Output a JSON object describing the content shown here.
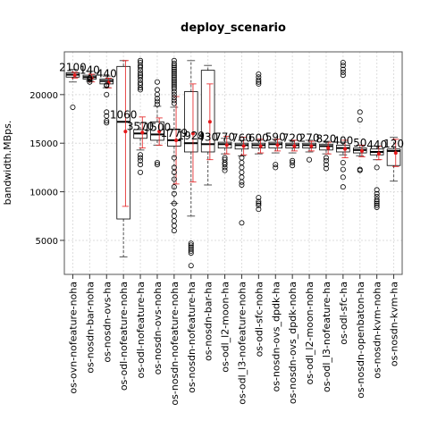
{
  "chart_data": {
    "type": "boxplot",
    "title": "deploy_scenario",
    "xlabel": "",
    "ylabel": "bandwidth.MBps.",
    "ylim": [
      1500,
      24400
    ],
    "yticks": [
      5000,
      10000,
      15000,
      20000
    ],
    "grid": true,
    "colors": {
      "box": "#000000",
      "whisker": "#555555",
      "mean": "#e41a1c",
      "grid": "#dddddd"
    },
    "categories": [
      {
        "name": "os-ovn-nofeature-noha",
        "n_label": "2100",
        "lower_whisker": 21300,
        "q1": 21800,
        "median": 22050,
        "q3": 22250,
        "upper_whisker": 22600,
        "mean": 22000,
        "mean_band": [
          21700,
          22300
        ],
        "outliers": [
          18700
        ]
      },
      {
        "name": "os-nosdn-bar-noha",
        "n_label": "140",
        "lower_whisker": 21400,
        "q1": 21600,
        "median": 21800,
        "q3": 22000,
        "upper_whisker": 22400,
        "mean": 21700,
        "mean_band": [
          21300,
          22100
        ],
        "outliers": [
          21500,
          21300,
          21600,
          21700
        ]
      },
      {
        "name": "os-nosdn-ovs-ha",
        "n_label": "440",
        "lower_whisker": 20700,
        "q1": 21100,
        "median": 21400,
        "q3": 21600,
        "upper_whisker": 21900,
        "mean": 21200,
        "mean_band": [
          20700,
          21700
        ],
        "outliers": [
          20000,
          18200,
          17800,
          17300,
          17100,
          21000,
          20900
        ]
      },
      {
        "name": "os-odl-nofeature-noha",
        "n_label": "1060",
        "lower_whisker": 3300,
        "q1": 7200,
        "median": 17200,
        "q3": 22900,
        "upper_whisker": 23500,
        "mean": 16200,
        "mean_band": [
          8500,
          23500
        ],
        "outliers": []
      },
      {
        "name": "os-odl-nofeature-ha",
        "n_label": "3570",
        "lower_whisker": 14300,
        "q1": 15500,
        "median": 16000,
        "q3": 16400,
        "upper_whisker": 17100,
        "mean": 16100,
        "mean_band": [
          14500,
          17700
        ],
        "outliers": [
          23500,
          23300,
          23000,
          22800,
          22500,
          22200,
          22000,
          21800,
          21500,
          21200,
          21000,
          20700,
          20500,
          13800,
          13500,
          13200,
          12800,
          12000
        ]
      },
      {
        "name": "os-nosdn-ovs-noha",
        "n_label": "1500",
        "lower_whisker": 14800,
        "q1": 15300,
        "median": 15900,
        "q3": 17200,
        "upper_whisker": 18800,
        "mean": 16200,
        "mean_band": [
          14800,
          17600
        ],
        "outliers": [
          21300,
          20500,
          20000,
          19600,
          19300,
          19000,
          13000,
          12800
        ]
      },
      {
        "name": "os-nosdn-nofeature-noha",
        "n_label": "1779",
        "lower_whisker": 8800,
        "q1": 14700,
        "median": 15300,
        "q3": 16400,
        "upper_whisker": 18700,
        "mean": 15300,
        "mean_band": [
          10800,
          19800
        ],
        "outliers": [
          23500,
          23200,
          23000,
          22800,
          22600,
          22400,
          22200,
          22000,
          21800,
          21600,
          21400,
          21200,
          21000,
          20800,
          20600,
          20300,
          20000,
          19700,
          19400,
          19100,
          13500,
          12500,
          12000,
          11300,
          10500,
          9800,
          8800,
          8000,
          7500,
          7000,
          6500,
          6000
        ]
      },
      {
        "name": "os-nosdn-nofeature-ha",
        "n_label": "1929",
        "lower_whisker": 7500,
        "q1": 14100,
        "median": 15000,
        "q3": 20300,
        "upper_whisker": 23500,
        "mean": 16000,
        "mean_band": [
          11000,
          21100
        ],
        "outliers": [
          4700,
          4500,
          4300,
          4100,
          3900,
          3700,
          2400
        ]
      },
      {
        "name": "os-nosdn-bar-ha",
        "n_label": "430",
        "lower_whisker": 10700,
        "q1": 14100,
        "median": 14900,
        "q3": 22500,
        "upper_whisker": 23000,
        "mean": 17200,
        "mean_band": [
          13300,
          21100
        ],
        "outliers": []
      },
      {
        "name": "os-odl_l2-moon-ha",
        "n_label": "770",
        "lower_whisker": 13900,
        "q1": 14500,
        "median": 14900,
        "q3": 15100,
        "upper_whisker": 15500,
        "mean": 14800,
        "mean_band": [
          13900,
          15700
        ],
        "outliers": [
          13500,
          13300,
          13000,
          12800,
          12500,
          12200
        ]
      },
      {
        "name": "os-odl_l3-nofeature-noha",
        "n_label": "760",
        "lower_whisker": 13700,
        "q1": 14400,
        "median": 14800,
        "q3": 15000,
        "upper_whisker": 15300,
        "mean": 14700,
        "mean_band": [
          13800,
          15600
        ],
        "outliers": [
          13500,
          13000,
          12500,
          12000,
          11500,
          11000,
          10700,
          6800
        ]
      },
      {
        "name": "os-odl-sfc-noha",
        "n_label": "600",
        "lower_whisker": 13900,
        "q1": 14500,
        "median": 14800,
        "q3": 15000,
        "upper_whisker": 15300,
        "mean": 14700,
        "mean_band": [
          14000,
          15400
        ],
        "outliers": [
          22100,
          21800,
          21500,
          21300,
          21100,
          9400,
          9000,
          8800,
          8600,
          8200
        ]
      },
      {
        "name": "os-nosdn-ovs_dpdk-ha",
        "n_label": "590",
        "lower_whisker": 14000,
        "q1": 14500,
        "median": 14900,
        "q3": 15100,
        "upper_whisker": 15400,
        "mean": 14800,
        "mean_band": [
          14200,
          15400
        ],
        "outliers": [
          12800,
          12500
        ]
      },
      {
        "name": "os-nosdn-ovs_dpdk-noha",
        "n_label": "720",
        "lower_whisker": 14000,
        "q1": 14500,
        "median": 14800,
        "q3": 15000,
        "upper_whisker": 15300,
        "mean": 14700,
        "mean_band": [
          14200,
          15300
        ],
        "outliers": [
          13200,
          13000,
          12700
        ]
      },
      {
        "name": "os-odl_l2-moon-noha",
        "n_label": "270",
        "lower_whisker": 14100,
        "q1": 14500,
        "median": 14800,
        "q3": 15000,
        "upper_whisker": 15300,
        "mean": 14700,
        "mean_band": [
          14200,
          15200
        ],
        "outliers": [
          13300
        ]
      },
      {
        "name": "os-odl_l3-nofeature-ha",
        "n_label": "820",
        "lower_whisker": 13900,
        "q1": 14300,
        "median": 14700,
        "q3": 14900,
        "upper_whisker": 15200,
        "mean": 14500,
        "mean_band": [
          13900,
          15100
        ],
        "outliers": [
          13500,
          13200,
          12800,
          12400
        ]
      },
      {
        "name": "os-odl-sfc-ha",
        "n_label": "400",
        "lower_whisker": 13800,
        "q1": 14100,
        "median": 14500,
        "q3": 14800,
        "upper_whisker": 15100,
        "mean": 14400,
        "mean_band": [
          13500,
          15300
        ],
        "outliers": [
          23300,
          23000,
          22600,
          22300,
          22000,
          13000,
          12300,
          11500,
          10500
        ]
      },
      {
        "name": "os-nosdn-openbaton-ha",
        "n_label": "50",
        "lower_whisker": 13700,
        "q1": 14000,
        "median": 14300,
        "q3": 14500,
        "upper_whisker": 14800,
        "mean": 14200,
        "mean_band": [
          13600,
          14800
        ],
        "outliers": [
          18200,
          17400,
          12300,
          12200
        ]
      },
      {
        "name": "os-nosdn-kvm-noha",
        "n_label": "440",
        "lower_whisker": 13300,
        "q1": 13800,
        "median": 14100,
        "q3": 14400,
        "upper_whisker": 14700,
        "mean": 13900,
        "mean_band": [
          13300,
          14700
        ],
        "outliers": [
          12500,
          10200,
          9800,
          9500,
          9200,
          9000,
          8800,
          8600,
          8400
        ]
      },
      {
        "name": "os-nosdn-kvm-ha",
        "n_label": "120",
        "lower_whisker": 11100,
        "q1": 12700,
        "median": 14200,
        "q3": 14400,
        "upper_whisker": 15600,
        "mean": 14000,
        "mean_band": [
          12600,
          15400
        ],
        "outliers": []
      }
    ]
  }
}
